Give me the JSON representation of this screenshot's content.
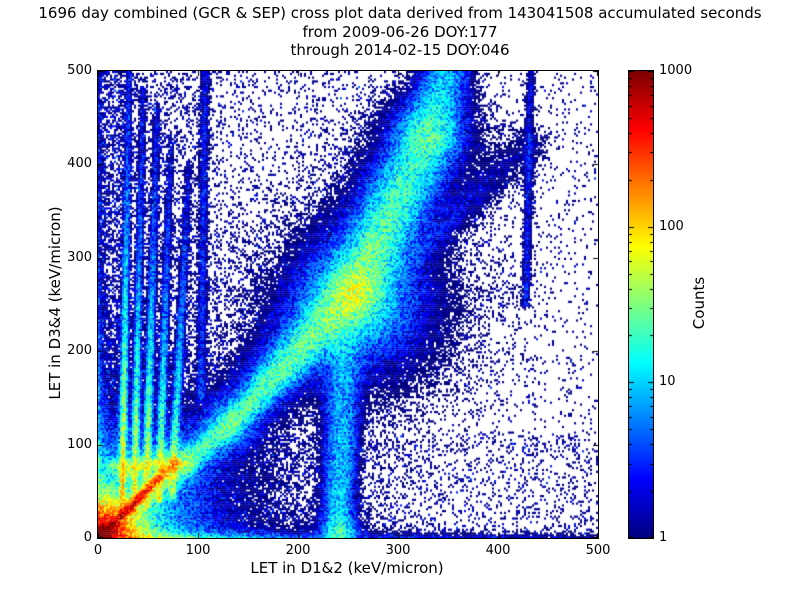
{
  "title": {
    "line1": "1696 day combined (GCR & SEP) cross plot data derived from 143041508 accumulated seconds",
    "line2": "from 2009-06-26 DOY:177",
    "line3": "through 2014-02-15 DOY:046"
  },
  "chart_data": {
    "type": "heatmap",
    "title": "1696 day combined (GCR & SEP) cross plot data derived from 143041508 accumulated seconds from 2009-06-26 DOY:177 through 2014-02-15 DOY:046",
    "xlabel": "LET in D1&2 (keV/micron)",
    "ylabel": "LET in D3&4 (keV/micron)",
    "xlim": [
      0,
      500
    ],
    "ylim": [
      0,
      500
    ],
    "xticks": [
      0,
      100,
      200,
      300,
      400,
      500
    ],
    "yticks": [
      0,
      100,
      200,
      300,
      400,
      500
    ],
    "grid": false,
    "colorbar": {
      "label": "Counts",
      "scale": "log",
      "min": 1,
      "max": 1000,
      "ticks": [
        1,
        10,
        100,
        1000
      ],
      "colormap": "jet"
    },
    "features": [
      {
        "type": "radial",
        "x": 2,
        "y": 2,
        "terms": [
          {
            "A": 2600,
            "r0": 9
          },
          {
            "A": 130,
            "r0": 22
          },
          {
            "A": 12,
            "r0": 55
          }
        ]
      },
      {
        "type": "segment",
        "x1": 4,
        "y1": 4,
        "x2": 76,
        "y2": 80,
        "A1": 700,
        "A2": 90,
        "s1": 2.2,
        "s2": 3.2
      },
      {
        "type": "radial",
        "x": 77,
        "y": 82,
        "terms": [
          {
            "A": 90,
            "r0": 6
          }
        ]
      },
      {
        "type": "radial",
        "x": 30,
        "y": 74,
        "terms": [
          {
            "A": 55,
            "r0": 5
          }
        ]
      },
      {
        "type": "radial",
        "x": 44,
        "y": 78,
        "terms": [
          {
            "A": 45,
            "r0": 5
          }
        ]
      },
      {
        "type": "radial",
        "x": 58,
        "y": 82,
        "terms": [
          {
            "A": 38,
            "r0": 5
          }
        ]
      },
      {
        "type": "segment",
        "x1": 15,
        "y1": 78,
        "x2": 90,
        "y2": 78,
        "A1": 18,
        "A2": 14,
        "s1": 4,
        "s2": 4
      },
      {
        "type": "segment",
        "x1": 24,
        "y1": 22,
        "x2": 31,
        "y2": 500,
        "A1": 130,
        "A2": 1.2,
        "s1": 1.8,
        "s2": 2.2,
        "tau": 0.2
      },
      {
        "type": "segment",
        "x1": 36,
        "y1": 28,
        "x2": 45,
        "y2": 480,
        "A1": 90,
        "A2": 0.9,
        "s1": 1.8,
        "s2": 2.2,
        "tau": 0.2
      },
      {
        "type": "segment",
        "x1": 48,
        "y1": 34,
        "x2": 59,
        "y2": 460,
        "A1": 75,
        "A2": 0.7,
        "s1": 2,
        "s2": 2.4,
        "tau": 0.22
      },
      {
        "type": "segment",
        "x1": 61,
        "y1": 40,
        "x2": 73,
        "y2": 430,
        "A1": 60,
        "A2": 0.5,
        "s1": 2,
        "s2": 2.4,
        "tau": 0.22
      },
      {
        "type": "segment",
        "x1": 74,
        "y1": 46,
        "x2": 91,
        "y2": 400,
        "A1": 42,
        "A2": 0.4,
        "s1": 2.2,
        "s2": 2.6,
        "tau": 0.25
      },
      {
        "type": "segment",
        "x1": 15,
        "y1": 12,
        "x2": 130,
        "y2": 120,
        "A1": 26,
        "A2": 14,
        "s1": 4,
        "s2": 7
      },
      {
        "type": "segment",
        "x1": 15,
        "y1": 12,
        "x2": 130,
        "y2": 120,
        "A1": 5,
        "A2": 4,
        "s1": 10,
        "s2": 16
      },
      {
        "type": "segment",
        "x1": 130,
        "y1": 120,
        "x2": 255,
        "y2": 265,
        "A1": 14,
        "A2": 26,
        "s1": 7,
        "s2": 13
      },
      {
        "type": "segment",
        "x1": 130,
        "y1": 120,
        "x2": 255,
        "y2": 265,
        "A1": 4,
        "A2": 4,
        "s1": 16,
        "s2": 26
      },
      {
        "type": "segment",
        "x1": 255,
        "y1": 265,
        "x2": 330,
        "y2": 430,
        "A1": 26,
        "A2": 12,
        "s1": 13,
        "s2": 16
      },
      {
        "type": "segment",
        "x1": 255,
        "y1": 265,
        "x2": 330,
        "y2": 430,
        "A1": 4,
        "A2": 3,
        "s1": 26,
        "s2": 30
      },
      {
        "type": "segment",
        "x1": 330,
        "y1": 430,
        "x2": 349,
        "y2": 500,
        "A1": 12,
        "A2": 9,
        "s1": 15,
        "s2": 13
      },
      {
        "type": "radial",
        "x": 262,
        "y": 246,
        "terms": [
          {
            "A": 18,
            "r0": 28
          }
        ]
      },
      {
        "type": "segment",
        "x1": 140,
        "y1": 128,
        "x2": 430,
        "y2": 420,
        "A1": 3,
        "A2": 1,
        "s1": 6,
        "s2": 12
      },
      {
        "type": "segment",
        "x1": 240,
        "y1": 4,
        "x2": 247,
        "y2": 235,
        "A1": 11,
        "A2": 5,
        "s1": 8,
        "s2": 11
      },
      {
        "type": "radial",
        "x": 242,
        "y": 6,
        "terms": [
          {
            "A": 26,
            "r0": 7
          }
        ]
      },
      {
        "type": "segment",
        "x1": 103,
        "y1": 150,
        "x2": 107,
        "y2": 500,
        "A1": 3,
        "A2": 2,
        "s1": 2.5,
        "s2": 3
      },
      {
        "type": "segment",
        "x1": 428,
        "y1": 250,
        "x2": 433,
        "y2": 500,
        "A1": 2.5,
        "A2": 2,
        "s1": 2.5,
        "s2": 2.5
      },
      {
        "type": "edge_bottom",
        "A0": 210,
        "xs0": 40,
        "A1": 10,
        "xs1": 260,
        "ys": 3.5
      },
      {
        "type": "edge_left",
        "A0": 60,
        "ys0": 50,
        "A1": 5,
        "ys1": 420,
        "xs": 3
      }
    ],
    "scatter": [
      {
        "mode": "uniform",
        "n": 5200,
        "x0": 0,
        "x1": 500,
        "y0": 0,
        "y1": 500
      },
      {
        "mode": "uniform",
        "n": 2200,
        "x0": 0,
        "x1": 260,
        "y0": 0,
        "y1": 500
      },
      {
        "mode": "uniform",
        "n": 1800,
        "x0": 0,
        "x1": 500,
        "y0": 0,
        "y1": 110
      },
      {
        "mode": "uniform",
        "n": 1200,
        "x0": 15,
        "x1": 95,
        "y0": 50,
        "y1": 500
      },
      {
        "mode": "uniform",
        "n": 900,
        "x0": 0,
        "x1": 25,
        "y0": 0,
        "y1": 500
      },
      {
        "mode": "wedge",
        "n": 2200,
        "xmax": 170
      },
      {
        "mode": "uniform",
        "n": 500,
        "x0": 200,
        "x1": 360,
        "y0": 250,
        "y1": 500
      }
    ]
  }
}
